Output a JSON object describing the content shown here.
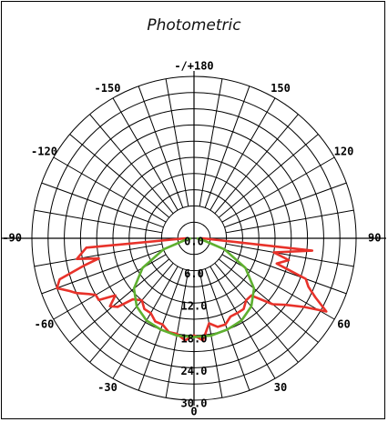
{
  "chart_data": {
    "type": "polar-line",
    "title": "Photometric",
    "angle_ticks": [
      {
        "deg": 180,
        "label": "-/+180"
      },
      {
        "deg": -150,
        "label": "-150"
      },
      {
        "deg": 150,
        "label": "150"
      },
      {
        "deg": -120,
        "label": "-120"
      },
      {
        "deg": 120,
        "label": "120"
      },
      {
        "deg": -90,
        "label": "-90"
      },
      {
        "deg": 90,
        "label": "90"
      },
      {
        "deg": -60,
        "label": "-60"
      },
      {
        "deg": 60,
        "label": "60"
      },
      {
        "deg": -30,
        "label": "-30"
      },
      {
        "deg": 30,
        "label": "30"
      },
      {
        "deg": 0,
        "label": "0"
      }
    ],
    "radial_ticks": [
      {
        "value": 0,
        "label": "0.0"
      },
      {
        "value": 6,
        "label": "6.0"
      },
      {
        "value": 12,
        "label": "12.0"
      },
      {
        "value": 18,
        "label": "18.0"
      },
      {
        "value": 24,
        "label": "24.0"
      },
      {
        "value": 30,
        "label": "30.0"
      }
    ],
    "rlim": [
      0,
      30
    ],
    "series": [
      {
        "color": "#e8322a",
        "points": [
          [
            -90,
            1.5
          ],
          [
            -85,
            20
          ],
          [
            -80,
            22
          ],
          [
            -78,
            18
          ],
          [
            -76,
            21
          ],
          [
            -73,
            26
          ],
          [
            -70,
            27
          ],
          [
            -67,
            25
          ],
          [
            -65,
            24
          ],
          [
            -62,
            22
          ],
          [
            -60,
            21
          ],
          [
            -57,
            21
          ],
          [
            -54,
            18
          ],
          [
            -51,
            20
          ],
          [
            -48,
            19
          ],
          [
            -45,
            16
          ],
          [
            -40,
            15
          ],
          [
            -35,
            16
          ],
          [
            -30,
            16
          ],
          [
            -25,
            17
          ],
          [
            -20,
            17
          ],
          [
            -15,
            18
          ],
          [
            -10,
            18
          ],
          [
            -5,
            19
          ],
          [
            0,
            18
          ],
          [
            5,
            19
          ],
          [
            10,
            16
          ],
          [
            15,
            17
          ],
          [
            20,
            17
          ],
          [
            25,
            16
          ],
          [
            30,
            16
          ],
          [
            35,
            16
          ],
          [
            40,
            15
          ],
          [
            45,
            15
          ],
          [
            50,
            19
          ],
          [
            54,
            21
          ],
          [
            58,
            24
          ],
          [
            61,
            28
          ],
          [
            64,
            25
          ],
          [
            67,
            23
          ],
          [
            70,
            22
          ],
          [
            73,
            16
          ],
          [
            77,
            18
          ],
          [
            80,
            15
          ],
          [
            84,
            22
          ],
          [
            90,
            1.5
          ]
        ]
      },
      {
        "color": "#5fb030",
        "points": [
          [
            -90,
            0.5
          ],
          [
            -80,
            1.5
          ],
          [
            -70,
            6
          ],
          [
            -60,
            11
          ],
          [
            -50,
            14.5
          ],
          [
            -40,
            16.5
          ],
          [
            -30,
            17.6
          ],
          [
            -20,
            18
          ],
          [
            -10,
            18.3
          ],
          [
            0,
            18.3
          ],
          [
            10,
            18.3
          ],
          [
            20,
            18
          ],
          [
            30,
            17.6
          ],
          [
            40,
            16.5
          ],
          [
            50,
            14.5
          ],
          [
            60,
            11
          ],
          [
            70,
            6
          ],
          [
            80,
            1.5
          ],
          [
            90,
            0.5
          ]
        ]
      }
    ]
  }
}
